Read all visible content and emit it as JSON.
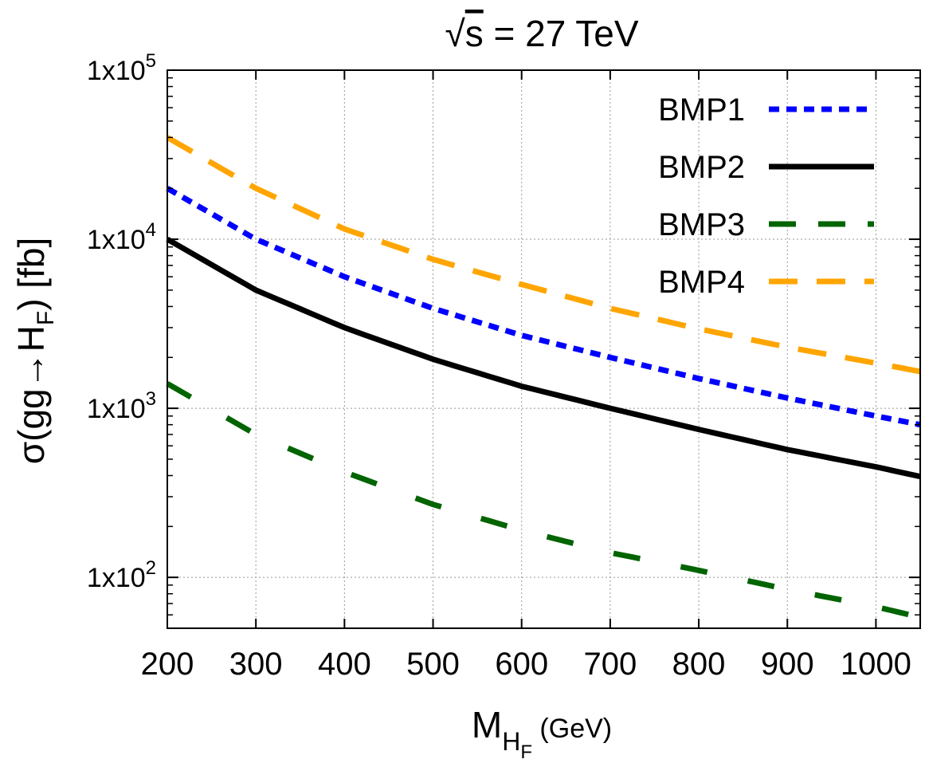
{
  "chart_data": {
    "type": "line",
    "title_sqrt_symbol": "√",
    "title_s": "s",
    "title_rest": " = 27 TeV",
    "xlabel_main": "M",
    "xlabel_sub": "H",
    "xlabel_subsub": "F",
    "xlabel_unit": " (GeV)",
    "ylabel_parts": [
      "σ(gg",
      "→",
      "H",
      "F",
      ") [fb]"
    ],
    "xlim": [
      200,
      1050
    ],
    "ylim": [
      50,
      100000
    ],
    "yscale": "log",
    "grid": true,
    "legend_position": "top-right",
    "x_ticks": [
      "200",
      "300",
      "400",
      "500",
      "600",
      "700",
      "800",
      "900",
      "1000"
    ],
    "y_ticks": [
      {
        "value": 100,
        "base": "1x10",
        "exp": "2"
      },
      {
        "value": 1000,
        "base": "1x10",
        "exp": "3"
      },
      {
        "value": 10000,
        "base": "1x10",
        "exp": "4"
      },
      {
        "value": 100000,
        "base": "1x10",
        "exp": "5"
      }
    ],
    "series": [
      {
        "name": "BMP1",
        "color": "#0000ff",
        "style": "dotted",
        "x": [
          200,
          300,
          400,
          500,
          600,
          700,
          800,
          900,
          1000,
          1050
        ],
        "y": [
          20000,
          10000,
          6000,
          3900,
          2700,
          2000,
          1500,
          1150,
          900,
          800
        ]
      },
      {
        "name": "BMP2",
        "color": "#000000",
        "style": "solid",
        "x": [
          200,
          300,
          400,
          500,
          600,
          700,
          800,
          900,
          1000,
          1050
        ],
        "y": [
          10000,
          5000,
          3000,
          1950,
          1350,
          1000,
          750,
          570,
          450,
          395
        ]
      },
      {
        "name": "BMP3",
        "color": "#006400",
        "style": "dashed",
        "x": [
          200,
          300,
          400,
          500,
          600,
          700,
          800,
          900,
          1000,
          1050
        ],
        "y": [
          1400,
          700,
          420,
          270,
          190,
          140,
          110,
          85,
          67,
          58
        ]
      },
      {
        "name": "BMP4",
        "color": "#ffa500",
        "style": "longdash",
        "x": [
          200,
          300,
          400,
          500,
          600,
          700,
          800,
          900,
          1000,
          1050
        ],
        "y": [
          40000,
          20000,
          11500,
          7600,
          5400,
          3900,
          2950,
          2300,
          1850,
          1650
        ]
      }
    ]
  }
}
